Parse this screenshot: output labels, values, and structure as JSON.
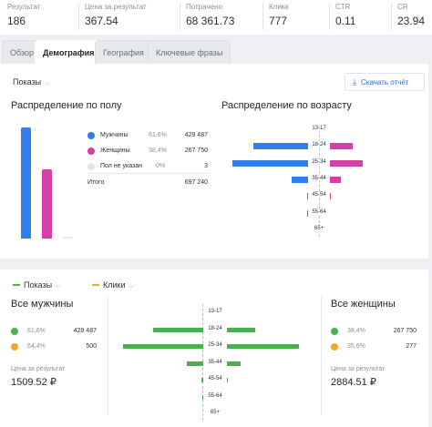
{
  "metrics": [
    {
      "label": "Результат",
      "value": "186"
    },
    {
      "label": "Цена за результат",
      "value": "367.54"
    },
    {
      "label": "Потрачено",
      "value": "68 361.73"
    },
    {
      "label": "Клики",
      "value": "777"
    },
    {
      "label": "CTR",
      "value": "0.11"
    },
    {
      "label": "CR",
      "value": "23.94"
    }
  ],
  "tabs": [
    {
      "label": "Обзор",
      "active": false
    },
    {
      "label": "Демография",
      "active": true
    },
    {
      "label": "География",
      "active": false
    },
    {
      "label": "Ключевые фразы",
      "active": false
    }
  ],
  "toolbar": {
    "metric_select": "Показы",
    "export_label": "Скачать отчёт"
  },
  "gender": {
    "title": "Распределение по полу",
    "rows": [
      {
        "label": "Мужчины",
        "pct": "61,6%",
        "count": "429 487",
        "color": "#2f80ed"
      },
      {
        "label": "Женщины",
        "pct": "38,4%",
        "count": "267 750",
        "color": "#d63fa6"
      },
      {
        "label": "Пол не указан",
        "pct": "0%",
        "count": "3",
        "color": "#e3e5e8"
      }
    ],
    "total_label": "Итого",
    "total_value": "697 240"
  },
  "age": {
    "title": "Распределение по возрасту",
    "groups": [
      "13-17",
      "18-24",
      "25-34",
      "35-44",
      "45-54",
      "55-64",
      "65+"
    ],
    "male_share": [
      0,
      0.72,
      1.0,
      0.22,
      0.01,
      0.01,
      0
    ],
    "female_share": [
      0,
      0.42,
      0.6,
      0.2,
      0.01,
      0,
      0
    ],
    "male_color": "#2f80ed",
    "female_color": "#d63fa6"
  },
  "bottom": {
    "legend": [
      {
        "label": "Показы",
        "color": "#4caf50"
      },
      {
        "label": "Клики",
        "color": "#f5a623"
      }
    ],
    "men": {
      "title": "Все мужчины",
      "rows": [
        {
          "pct": "61,6%",
          "value": "429 487",
          "color": "#4caf50"
        },
        {
          "pct": "64,4%",
          "value": "500",
          "color": "#f5a623"
        }
      ],
      "cpr_label": "Цена за результат",
      "cpr_value": "1509.52 ₽"
    },
    "women": {
      "title": "Все женщины",
      "rows": [
        {
          "pct": "38,4%",
          "value": "267 750",
          "color": "#4caf50"
        },
        {
          "pct": "35,6%",
          "value": "277",
          "color": "#f5a623"
        }
      ],
      "cpr_label": "Цена за результат",
      "cpr_value": "2884.51 ₽"
    },
    "age_groups": [
      "13-17",
      "18-24",
      "25-34",
      "35-44",
      "45-54",
      "55-64",
      "65+"
    ],
    "male_share": [
      0,
      0.62,
      1.0,
      0.2,
      0.02,
      0.01,
      0
    ],
    "female_share": [
      0,
      0.35,
      0.9,
      0.17,
      0.01,
      0,
      0
    ]
  }
}
